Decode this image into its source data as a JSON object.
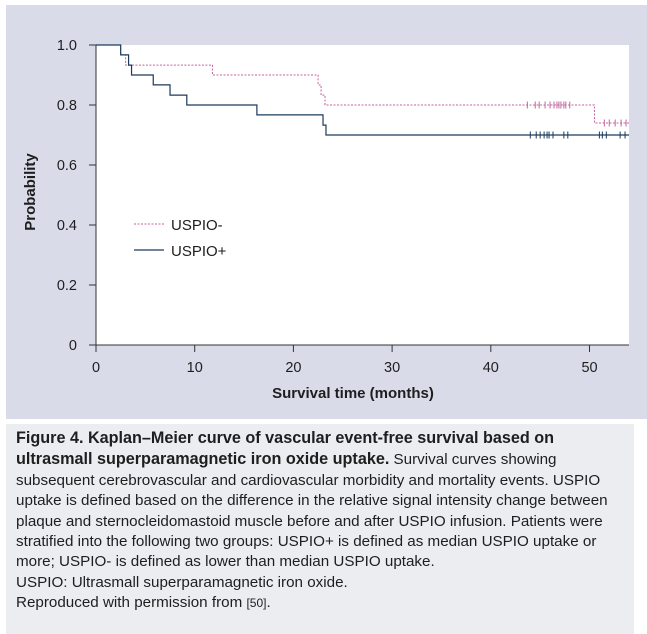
{
  "chart_data": {
    "type": "line",
    "subtype": "kaplan-meier",
    "xlabel": "Survival time (months)",
    "ylabel": "Probability",
    "xlim": [
      0,
      54
    ],
    "ylim": [
      0,
      1.0
    ],
    "x_ticks": [
      "0",
      "10",
      "20",
      "30",
      "40",
      "50"
    ],
    "y_ticks": [
      "0",
      "0.2",
      "0.4",
      "0.6",
      "0.8",
      "1.0"
    ],
    "legend_position": "center-left",
    "series": [
      {
        "name": "USPIO-",
        "color": "#c2649d",
        "style": "dashed",
        "steps": [
          [
            0,
            1.0
          ],
          [
            2.5,
            0.967
          ],
          [
            3.0,
            0.933
          ],
          [
            11.8,
            0.9
          ],
          [
            22.5,
            0.867
          ],
          [
            22.8,
            0.833
          ],
          [
            23.2,
            0.8
          ],
          [
            50.5,
            0.74
          ],
          [
            54,
            0.74
          ]
        ],
        "censored": [
          43.7,
          44.5,
          44.9,
          45.5,
          46.0,
          46.4,
          46.7,
          46.9,
          47.1,
          47.4,
          47.6,
          48.0,
          51.5,
          52.0,
          52.6,
          53.2,
          53.7
        ]
      },
      {
        "name": "USPIO+",
        "color": "#1c3a5e",
        "style": "solid",
        "steps": [
          [
            0,
            1.0
          ],
          [
            2.5,
            0.967
          ],
          [
            3.3,
            0.933
          ],
          [
            3.6,
            0.9
          ],
          [
            5.8,
            0.867
          ],
          [
            7.5,
            0.833
          ],
          [
            9.2,
            0.8
          ],
          [
            16.3,
            0.767
          ],
          [
            23.0,
            0.733
          ],
          [
            23.3,
            0.7
          ],
          [
            54,
            0.7
          ]
        ],
        "censored": [
          44.0,
          44.6,
          45.0,
          45.4,
          45.7,
          45.9,
          46.3,
          47.4,
          47.8,
          51.0,
          51.3,
          51.7,
          53.1,
          53.6
        ]
      }
    ]
  },
  "caption": {
    "title": "Figure 4. Kaplan–Meier curve of vascular event-free survival based on ultrasmall superparamagnetic iron oxide uptake.",
    "body": " Survival curves showing subsequent cerebrovascular and cardiovascular morbidity and mortality events. USPIO uptake is defined based on the difference in the relative signal intensity change between plaque and sternocleidomastoid muscle before and after USPIO infusion. Patients were stratified into the following two groups: USPIO+ is defined as median USPIO uptake or more; USPIO- is defined as lower than median USPIO uptake.",
    "abbreviation": "USPIO: Ultrasmall superparamagnetic iron oxide.",
    "reproduced_prefix": "Reproduced with permission from ",
    "reference": "[50]",
    "reproduced_suffix": "."
  }
}
